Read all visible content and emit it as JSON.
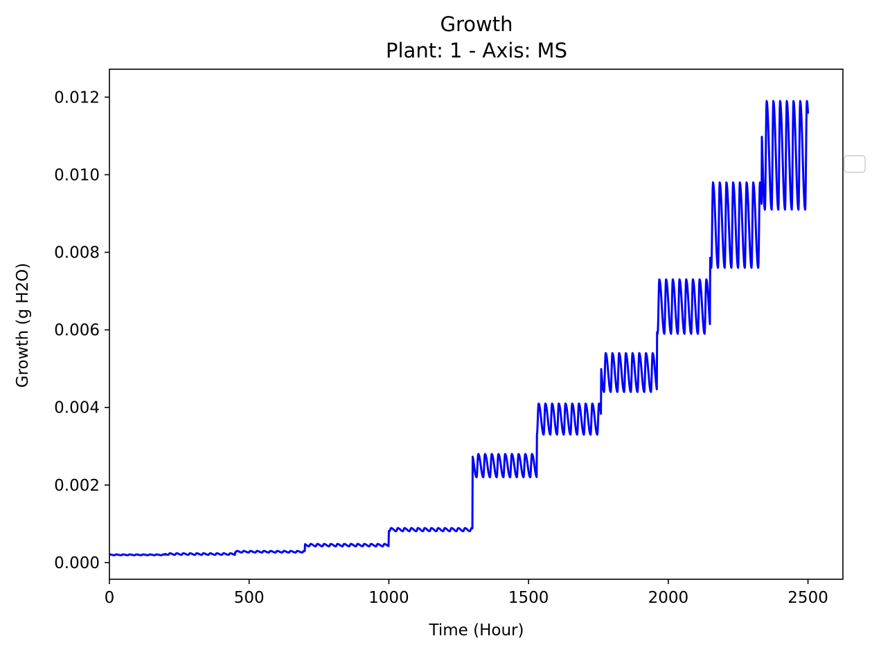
{
  "chart_data": {
    "type": "line",
    "title": "Growth",
    "subtitle": "Plant: 1 - Axis: MS",
    "xlabel": "Time (Hour)",
    "ylabel": "Growth (g H2O)",
    "xlim": [
      0,
      2625
    ],
    "ylim": [
      -0.00043,
      0.01272
    ],
    "x_ticks": [
      0,
      500,
      1000,
      1500,
      2000,
      2500
    ],
    "x_tick_labels": [
      "0",
      "500",
      "1000",
      "1500",
      "2000",
      "2500"
    ],
    "y_ticks": [
      0.0,
      0.002,
      0.004,
      0.006,
      0.008,
      0.01,
      0.012
    ],
    "y_tick_labels": [
      "0.000",
      "0.002",
      "0.004",
      "0.006",
      "0.008",
      "0.010",
      "0.012"
    ],
    "grid": false,
    "legend": {
      "placement": "outside right",
      "entries": []
    },
    "series_color": "#0000ff",
    "series": [
      {
        "x_range": [
          0,
          2500
        ],
        "points_description": "diurnal oscillation (24 h period)",
        "segments": [
          {
            "t0": 0,
            "t1": 200,
            "base": 0.0002,
            "amp": 1e-05
          },
          {
            "t0": 200,
            "t1": 450,
            "base": 0.00022,
            "amp": 2e-05
          },
          {
            "t0": 450,
            "t1": 700,
            "base": 0.00028,
            "amp": 2e-05
          },
          {
            "t0": 700,
            "t1": 1000,
            "base": 0.00045,
            "amp": 3e-05
          },
          {
            "t0": 1000,
            "t1": 1300,
            "base": 0.00085,
            "amp": 4e-05
          },
          {
            "t0": 1300,
            "t1": 1530,
            "base": 0.0025,
            "amp": 0.0003
          },
          {
            "t0": 1530,
            "t1": 1760,
            "base": 0.0037,
            "amp": 0.0004
          },
          {
            "t0": 1760,
            "t1": 1960,
            "base": 0.0049,
            "amp": 0.0005
          },
          {
            "t0": 1960,
            "t1": 2150,
            "base": 0.0066,
            "amp": 0.0007
          },
          {
            "t0": 2150,
            "t1": 2335,
            "base": 0.0087,
            "amp": 0.0011
          },
          {
            "t0": 2335,
            "t1": 2500,
            "base": 0.0105,
            "amp": 0.0014
          }
        ]
      }
    ]
  }
}
